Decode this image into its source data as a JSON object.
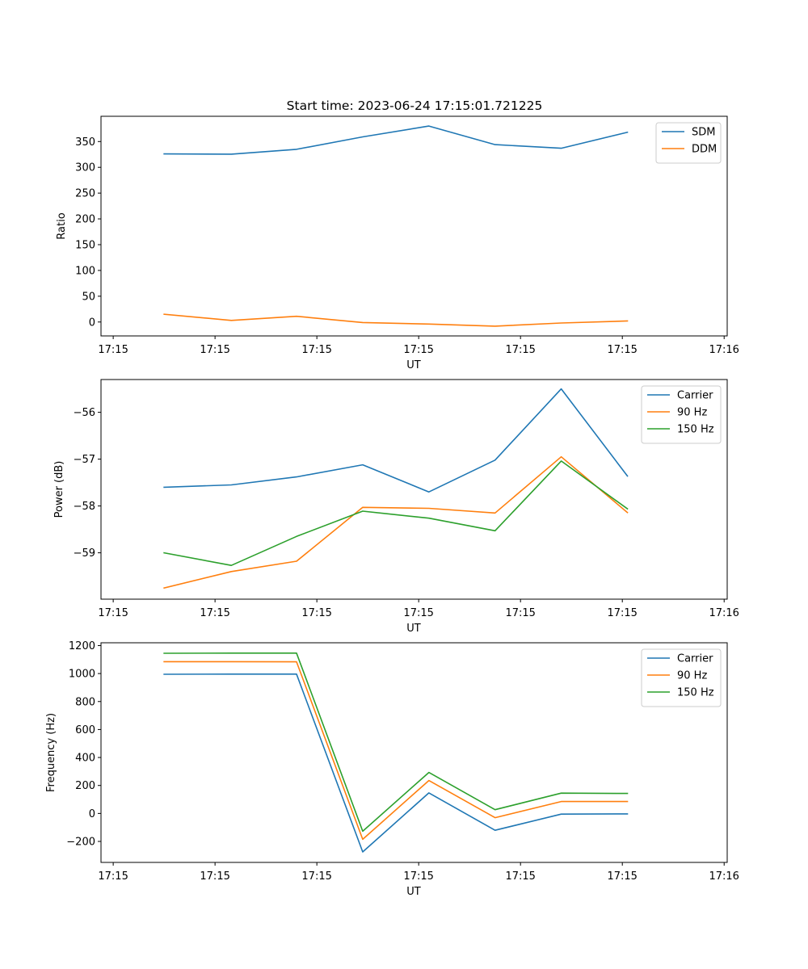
{
  "title": "Start time: 2023-06-24 17:15:01.721225",
  "chart_data": [
    {
      "type": "line",
      "title": "Start time: 2023-06-24 17:15:01.721225",
      "xlabel": "UT",
      "ylabel": "Ratio",
      "x_tick_labels": [
        "17:15",
        "17:15",
        "17:15",
        "17:15",
        "17:15",
        "17:15",
        "17:16"
      ],
      "y_ticks": [
        0,
        50,
        100,
        150,
        200,
        250,
        300,
        350
      ],
      "ylim": [
        -27,
        399
      ],
      "legend_position": "upper right",
      "series": [
        {
          "name": "SDM",
          "color": "#1f77b4",
          "x": [
            0.5,
            1.16,
            1.8,
            2.45,
            3.1,
            3.75,
            4.4,
            5.05
          ],
          "y": [
            326,
            325.5,
            335,
            359,
            380,
            344,
            337,
            368
          ]
        },
        {
          "name": "DDM",
          "color": "#ff7f0e",
          "x": [
            0.5,
            1.16,
            1.8,
            2.45,
            3.1,
            3.75,
            4.4,
            5.05
          ],
          "y": [
            15,
            3,
            11,
            -1,
            -4,
            -8,
            -2,
            2
          ]
        }
      ]
    },
    {
      "type": "line",
      "xlabel": "UT",
      "ylabel": "Power (dB)",
      "x_tick_labels": [
        "17:15",
        "17:15",
        "17:15",
        "17:15",
        "17:15",
        "17:15",
        "17:16"
      ],
      "y_ticks": [
        -59,
        -58,
        -57,
        -56
      ],
      "ylim": [
        -59.99,
        -55.3
      ],
      "legend_position": "upper right",
      "series": [
        {
          "name": "Carrier",
          "color": "#1f77b4",
          "x": [
            0.5,
            1.16,
            1.8,
            2.45,
            3.1,
            3.75,
            4.4,
            5.05
          ],
          "y": [
            -57.6,
            -57.55,
            -57.38,
            -57.12,
            -57.7,
            -57.02,
            -55.5,
            -57.36
          ]
        },
        {
          "name": "90 Hz",
          "color": "#ff7f0e",
          "x": [
            0.5,
            1.16,
            1.8,
            2.45,
            3.1,
            3.75,
            4.4,
            5.05
          ],
          "y": [
            -59.75,
            -59.4,
            -59.18,
            -58.03,
            -58.05,
            -58.15,
            -56.95,
            -58.14
          ]
        },
        {
          "name": "150 Hz",
          "color": "#2ca02c",
          "x": [
            0.5,
            1.16,
            1.8,
            2.45,
            3.1,
            3.75,
            4.4,
            5.05
          ],
          "y": [
            -59.0,
            -59.27,
            -58.65,
            -58.11,
            -58.26,
            -58.53,
            -57.04,
            -58.06
          ]
        }
      ]
    },
    {
      "type": "line",
      "xlabel": "UT",
      "ylabel": "Frequency (Hz)",
      "x_tick_labels": [
        "17:15",
        "17:15",
        "17:15",
        "17:15",
        "17:15",
        "17:15",
        "17:16"
      ],
      "y_ticks": [
        -200,
        0,
        200,
        400,
        600,
        800,
        1000,
        1200
      ],
      "ylim": [
        -350,
        1220
      ],
      "legend_position": "upper right",
      "series": [
        {
          "name": "Carrier",
          "color": "#1f77b4",
          "x": [
            0.5,
            1.16,
            1.8,
            2.45,
            3.1,
            3.75,
            4.4,
            5.05
          ],
          "y": [
            995,
            996,
            996,
            -275,
            147,
            -120,
            -5,
            -3
          ]
        },
        {
          "name": "90 Hz",
          "color": "#ff7f0e",
          "x": [
            0.5,
            1.16,
            1.8,
            2.45,
            3.1,
            3.75,
            4.4,
            5.05
          ],
          "y": [
            1085,
            1085,
            1084,
            -185,
            235,
            -30,
            85,
            85
          ]
        },
        {
          "name": "150 Hz",
          "color": "#2ca02c",
          "x": [
            0.5,
            1.16,
            1.8,
            2.45,
            3.1,
            3.75,
            4.4,
            5.05
          ],
          "y": [
            1145,
            1146,
            1146,
            -127,
            293,
            27,
            145,
            143
          ]
        }
      ]
    }
  ]
}
